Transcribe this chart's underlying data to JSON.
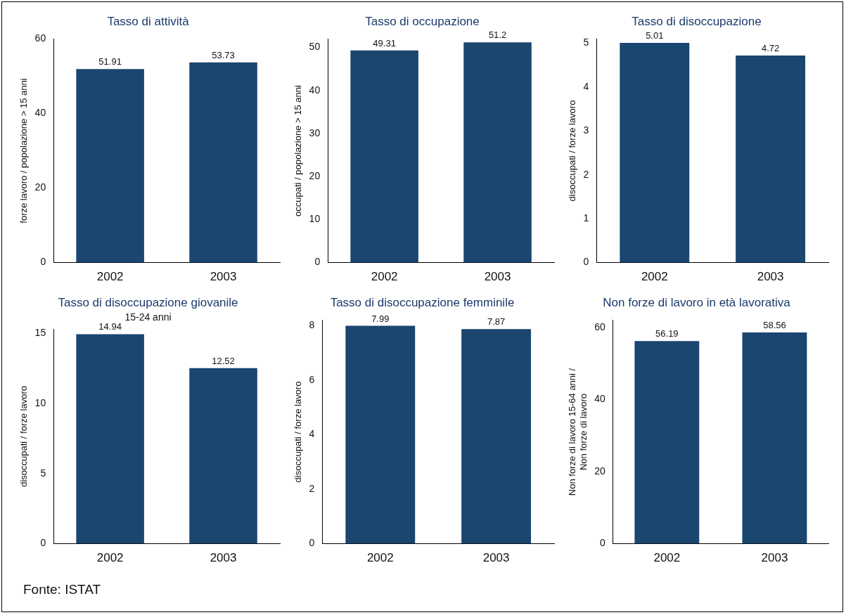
{
  "chart_data": [
    {
      "type": "bar",
      "title": "Tasso di attività",
      "ylabel": "forze lavoro / popolazione > 15 anni",
      "categories": [
        "2002",
        "2003"
      ],
      "values": [
        51.91,
        53.73
      ],
      "color": "#1a4670",
      "ylim": [
        0,
        60
      ],
      "yticks": [
        0,
        20,
        40,
        60
      ],
      "data_labels": true
    },
    {
      "type": "bar",
      "title": "Tasso di occupazione",
      "ylabel": "occupati / popolazione > 15 anni",
      "categories": [
        "2002",
        "2003"
      ],
      "values": [
        49.31,
        51.2
      ],
      "color": "#1a4670",
      "ylim": [
        0,
        52
      ],
      "yticks": [
        0,
        10,
        20,
        30,
        40,
        50
      ],
      "data_labels": true
    },
    {
      "type": "bar",
      "title": "Tasso di disoccupazione",
      "ylabel": "disoccupati / forze lavoro",
      "categories": [
        "2002",
        "2003"
      ],
      "values": [
        5.01,
        4.72
      ],
      "color": "#1a4670",
      "ylim": [
        0,
        5.1
      ],
      "yticks": [
        0,
        1,
        2,
        3,
        4,
        5
      ],
      "data_labels": true
    },
    {
      "type": "bar",
      "title": "Tasso di disoccupazione giovanile",
      "subtitle": "15-24 anni",
      "ylabel": "disoccupati / forze lavoro",
      "categories": [
        "2002",
        "2003"
      ],
      "values": [
        14.94,
        12.52
      ],
      "color": "#1a4670",
      "ylim": [
        0,
        15.3
      ],
      "yticks": [
        0,
        5,
        10,
        15
      ],
      "data_labels": true
    },
    {
      "type": "bar",
      "title": "Tasso di disoccupazione femminile",
      "ylabel": "disoccupati / forze lavoro",
      "categories": [
        "2002",
        "2003"
      ],
      "values": [
        7.99,
        7.87
      ],
      "color": "#1a4670",
      "ylim": [
        0,
        8.2
      ],
      "yticks": [
        0,
        2,
        4,
        6,
        8
      ],
      "data_labels": true
    },
    {
      "type": "bar",
      "title": "Non forze di lavoro in età lavorativa",
      "ylabel": "Non forze di lavoro 15-64 anni /\nNon forze di lavoro",
      "categories": [
        "2002",
        "2003"
      ],
      "values": [
        56.19,
        58.56
      ],
      "color": "#1a4670",
      "ylim": [
        0,
        62
      ],
      "yticks": [
        0,
        20,
        40,
        60
      ],
      "data_labels": true,
      "annotations": [
        "Fonte: ISTAT"
      ]
    }
  ]
}
